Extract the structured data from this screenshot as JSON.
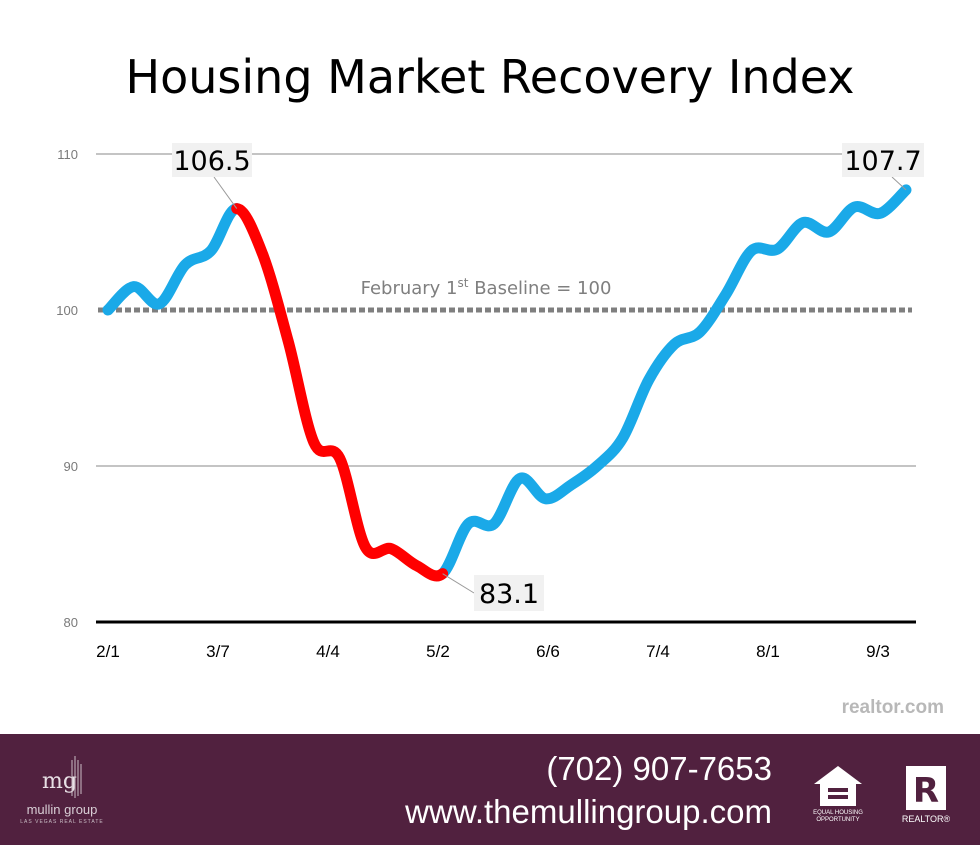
{
  "chart_data": {
    "type": "line",
    "title": "Housing Market Recovery Index",
    "xlabel": "",
    "ylabel": "",
    "ylim": [
      80,
      110
    ],
    "y_ticks": [
      80,
      90,
      100,
      110
    ],
    "x_tick_labels": [
      "2/1",
      "3/7",
      "4/4",
      "5/2",
      "6/6",
      "7/4",
      "8/1",
      "9/3"
    ],
    "grid": true,
    "baseline": {
      "value": 100,
      "label_main": "February 1",
      "label_sup": "st",
      "label_rest": " Baseline = 100"
    },
    "series": [
      {
        "segments": [
          "rise",
          "decline",
          "recovery"
        ],
        "x": [
          0,
          1,
          2,
          3,
          4,
          5,
          6,
          7,
          8,
          9,
          10,
          11,
          12,
          13,
          14,
          15,
          16,
          17,
          18,
          19,
          20,
          21,
          22,
          23,
          24,
          25,
          26,
          27,
          28,
          29,
          30,
          31
        ],
        "values": [
          100.0,
          101.5,
          100.4,
          102.9,
          103.8,
          106.5,
          103.6,
          98.0,
          91.5,
          90.5,
          84.8,
          84.7,
          83.6,
          83.1,
          86.3,
          86.3,
          89.2,
          87.9,
          88.8,
          90.0,
          91.8,
          95.5,
          97.8,
          98.6,
          101.0,
          103.8,
          103.9,
          105.6,
          105.0,
          106.6,
          106.2,
          107.7
        ],
        "highlight_range": [
          5,
          13
        ],
        "colors": {
          "normal": "#1aa9e8",
          "highlight": "#ff0000"
        }
      }
    ],
    "annotations": [
      {
        "label": "106.5",
        "at_index": 5
      },
      {
        "label": "83.1",
        "at_index": 13
      },
      {
        "label": "107.7",
        "at_index": 31
      }
    ]
  },
  "source": "realtor.com",
  "footer": {
    "phone": "(702) 907-7653",
    "website": "www.themullingroup.com",
    "logo_monogram": "mg",
    "logo_name": "mullin group",
    "logo_tagline": "LAS VEGAS REAL ESTATE",
    "eho_text": "EQUAL HOUSING OPPORTUNITY",
    "realtor_text": "REALTOR®",
    "realtor_letter": "R",
    "background": "#51213f"
  },
  "colors": {
    "line_blue": "#1aa9e8",
    "line_red": "#ff0000",
    "baseline": "#7f7f7f"
  }
}
